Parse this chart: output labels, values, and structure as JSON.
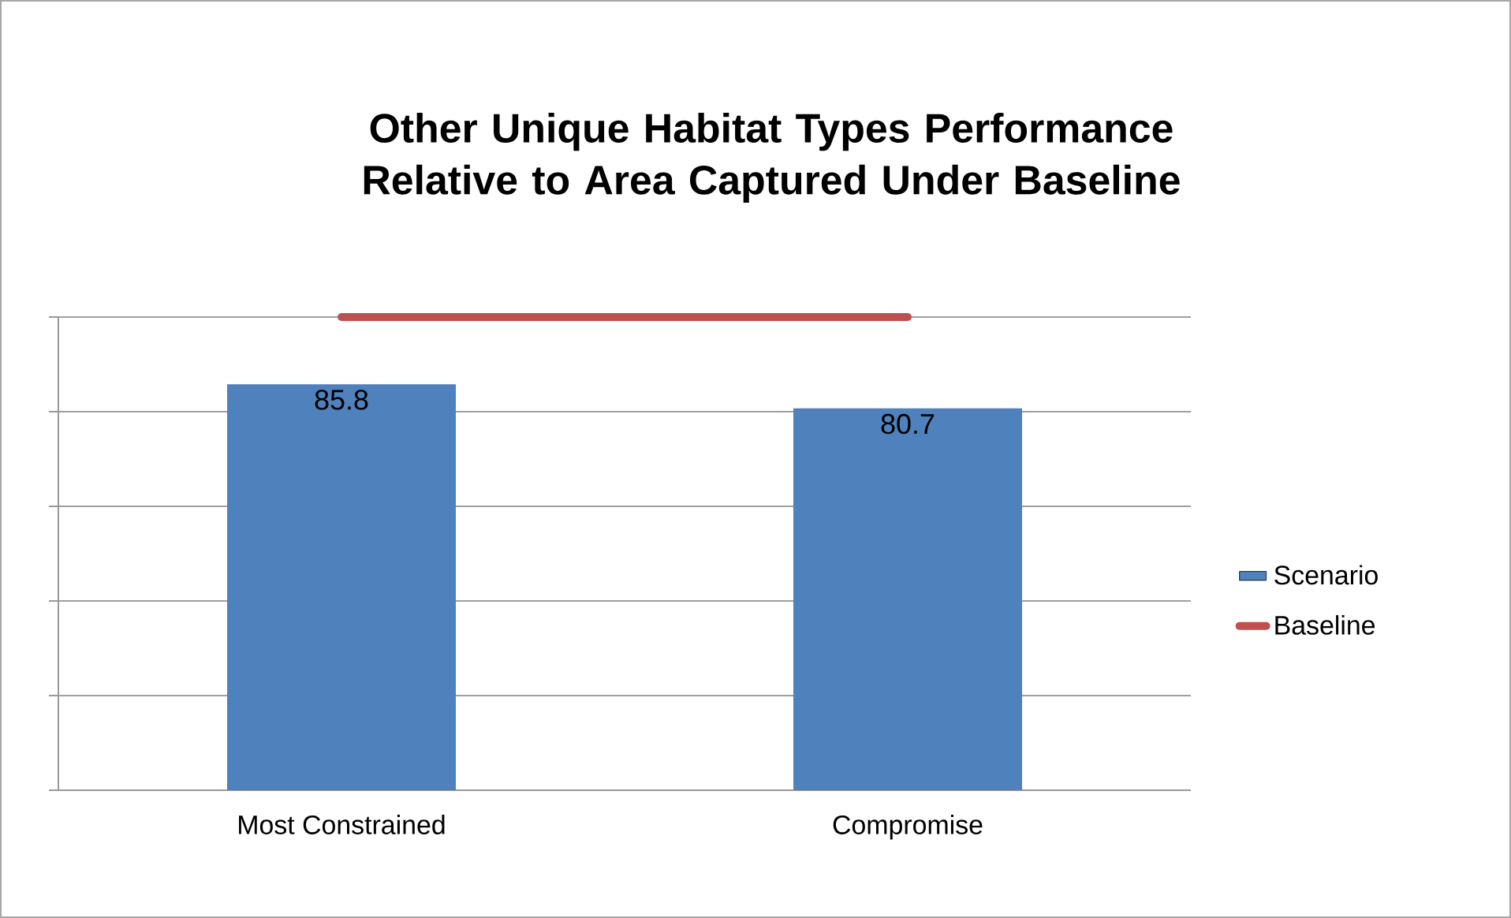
{
  "chart_data": {
    "type": "bar",
    "title": "Other Unique Habitat Types Performance Relative to Area Captured Under Baseline",
    "categories": [
      "Most Constrained",
      "Compromise"
    ],
    "series": [
      {
        "name": "Scenario",
        "color": "#4f81bd",
        "values": [
          85.8,
          80.7
        ],
        "value_labels": [
          "85.8",
          "80.7"
        ]
      },
      {
        "name": "Baseline",
        "type": "line",
        "color": "#c0504d",
        "values": [
          100,
          100
        ]
      }
    ],
    "ylim": [
      0,
      100
    ],
    "yticks": [
      {
        "value": 0,
        "label": null
      },
      {
        "value": 20,
        "label": null
      },
      {
        "value": 40,
        "label": null
      },
      {
        "value": 60,
        "label": null
      },
      {
        "value": 80,
        "label": null
      },
      {
        "value": 100,
        "label": null
      }
    ],
    "grid": "y",
    "legend": "right",
    "tick_labels": "x",
    "marker": "none"
  }
}
